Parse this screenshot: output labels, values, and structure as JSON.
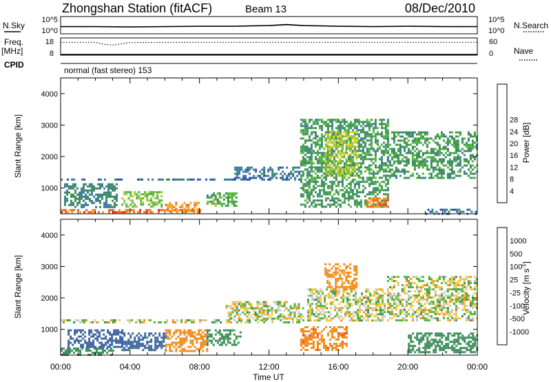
{
  "header": {
    "station": "Zhongshan Station (fitACF)",
    "beam": "Beam 13",
    "date": "08/Dec/2010"
  },
  "sidebar": {
    "nsky_label": "N.Sky",
    "nsearch_label": "N.Search",
    "freq_label": "Freq.",
    "freq_unit": "[MHz]",
    "nave_label": "Nave",
    "cpid_label": "CPID"
  },
  "scan_mode": "normal (fast stereo) 153",
  "chart_data": [
    {
      "type": "line",
      "panel": "noise",
      "x": [
        "00:00",
        "02:00",
        "04:00",
        "06:00",
        "08:00",
        "10:00",
        "12:00",
        "13:00",
        "14:00",
        "16:00",
        "18:00",
        "20:00",
        "22:00",
        "24:00"
      ],
      "series": [
        {
          "name": "N.Sky",
          "values": [
            2.1,
            2.1,
            2.0,
            2.1,
            2.2,
            2.2,
            2.4,
            2.7,
            2.4,
            2.2,
            2.1,
            2.2,
            2.1,
            2.1
          ]
        },
        {
          "name": "N.Search",
          "values": [
            2.0,
            2.0,
            1.9,
            2.0,
            2.1,
            2.1,
            2.3,
            2.5,
            2.3,
            2.1,
            2.0,
            2.1,
            2.0,
            2.0
          ]
        }
      ],
      "y_left_ticks": [
        "10^5",
        "10^0"
      ],
      "y_right_ticks": [
        "10^5",
        "10^0"
      ]
    },
    {
      "type": "line",
      "panel": "frequency",
      "x": [
        "00:00",
        "02:00",
        "02:30",
        "03:00",
        "04:00",
        "08:00",
        "12:00",
        "16:00",
        "20:00",
        "24:00"
      ],
      "series": [
        {
          "name": "Freq.",
          "values": [
            8.0,
            8.0,
            8.0,
            8.0,
            8.0,
            8.0,
            8.0,
            8.0,
            8.0,
            8.0
          ]
        },
        {
          "name": "Nave",
          "values": [
            45,
            45,
            38,
            35,
            44,
            45,
            45,
            45,
            45,
            45
          ]
        }
      ],
      "y_left_ticks": [
        "18",
        "8"
      ],
      "y_right_ticks": [
        "60",
        "0"
      ]
    },
    {
      "type": "heatmap",
      "panel": "power",
      "xlabel": "",
      "ylabel": "Slant Range [km]",
      "xlim_hours": [
        0,
        24
      ],
      "ylim": [
        180,
        4500
      ],
      "yticks": [
        1000,
        2000,
        3000,
        4000
      ],
      "colorbar": {
        "label": "Power [dB]",
        "ticks": [
          "4",
          "8",
          "12",
          "16",
          "20",
          "24",
          "28"
        ]
      },
      "palette": [
        "#1a1ae6",
        "#2850b4",
        "#3c78a0",
        "#3c8c5a",
        "#50b43c",
        "#a0c83c",
        "#f0d21e",
        "#f5a01e",
        "#f5641e",
        "#eb1e1e"
      ],
      "regions": [
        {
          "t": [
            0.0,
            8.2
          ],
          "range": [
            200,
            330
          ],
          "value": 26
        },
        {
          "t": [
            6.0,
            8.0
          ],
          "range": [
            280,
            560
          ],
          "value": 24
        },
        {
          "t": [
            0.0,
            13.8
          ],
          "range": [
            1240,
            1300
          ],
          "value": 8
        },
        {
          "t": [
            0.2,
            3.2
          ],
          "range": [
            380,
            1150
          ],
          "value": 10
        },
        {
          "t": [
            3.5,
            5.8
          ],
          "range": [
            400,
            900
          ],
          "value": 16
        },
        {
          "t": [
            8.4,
            10.2
          ],
          "range": [
            420,
            860
          ],
          "value": 14
        },
        {
          "t": [
            10.0,
            13.8
          ],
          "range": [
            1300,
            1680
          ],
          "value": 8
        },
        {
          "t": [
            13.8,
            18.8
          ],
          "range": [
            400,
            3200
          ],
          "value": 12
        },
        {
          "t": [
            15.2,
            17.0
          ],
          "range": [
            1400,
            2800
          ],
          "value": 18
        },
        {
          "t": [
            17.6,
            18.8
          ],
          "range": [
            420,
            700
          ],
          "value": 26
        },
        {
          "t": [
            18.8,
            24.0
          ],
          "range": [
            1300,
            2800
          ],
          "value": 12
        },
        {
          "t": [
            21.0,
            24.0
          ],
          "range": [
            200,
            340
          ],
          "value": 8
        }
      ]
    },
    {
      "type": "heatmap",
      "panel": "velocity",
      "xlabel": "Time UT",
      "ylabel": "Slant Range [km]",
      "xlim_hours": [
        0,
        24
      ],
      "xticks": [
        "00:00",
        "04:00",
        "08:00",
        "12:00",
        "16:00",
        "20:00",
        "00:00"
      ],
      "ylim": [
        180,
        4500
      ],
      "yticks": [
        1000,
        2000,
        3000,
        4000
      ],
      "colorbar": {
        "label": "Velocity [m s^-1]",
        "ticks": [
          "-1000",
          "-500",
          "-100",
          "-25",
          "25",
          "100",
          "500",
          "1000"
        ]
      },
      "palette": [
        "#e61e1e",
        "#f0501e",
        "#f08c1e",
        "#f5c83c",
        "#c8c8c8",
        "#50b43c",
        "#3c8c5a",
        "#3c64a0",
        "#1e3cc8"
      ],
      "regions": [
        {
          "t": [
            0.0,
            3.0
          ],
          "range": [
            200,
            420
          ],
          "value": 300
        },
        {
          "t": [
            0.4,
            3.5
          ],
          "range": [
            420,
            1000
          ],
          "value": 700
        },
        {
          "t": [
            3.5,
            6.0
          ],
          "range": [
            320,
            900
          ],
          "value": 600
        },
        {
          "t": [
            6.0,
            8.4
          ],
          "range": [
            300,
            1000
          ],
          "value": -300
        },
        {
          "t": [
            8.4,
            10.4
          ],
          "range": [
            500,
            1000
          ],
          "value": 200
        },
        {
          "t": [
            0.0,
            14.0
          ],
          "range": [
            1240,
            1320
          ],
          "value": 0
        },
        {
          "t": [
            9.5,
            14.0
          ],
          "range": [
            1320,
            1900
          ],
          "value": 0
        },
        {
          "t": [
            13.8,
            16.5
          ],
          "range": [
            350,
            1100
          ],
          "value": -400
        },
        {
          "t": [
            14.2,
            18.7
          ],
          "range": [
            1300,
            2300
          ],
          "value": 0
        },
        {
          "t": [
            15.2,
            17.0
          ],
          "range": [
            2300,
            3100
          ],
          "value": -200
        },
        {
          "t": [
            18.8,
            24.0
          ],
          "range": [
            1300,
            2700
          ],
          "value": 0
        },
        {
          "t": [
            20.0,
            24.0
          ],
          "range": [
            250,
            900
          ],
          "value": 300
        }
      ]
    }
  ]
}
